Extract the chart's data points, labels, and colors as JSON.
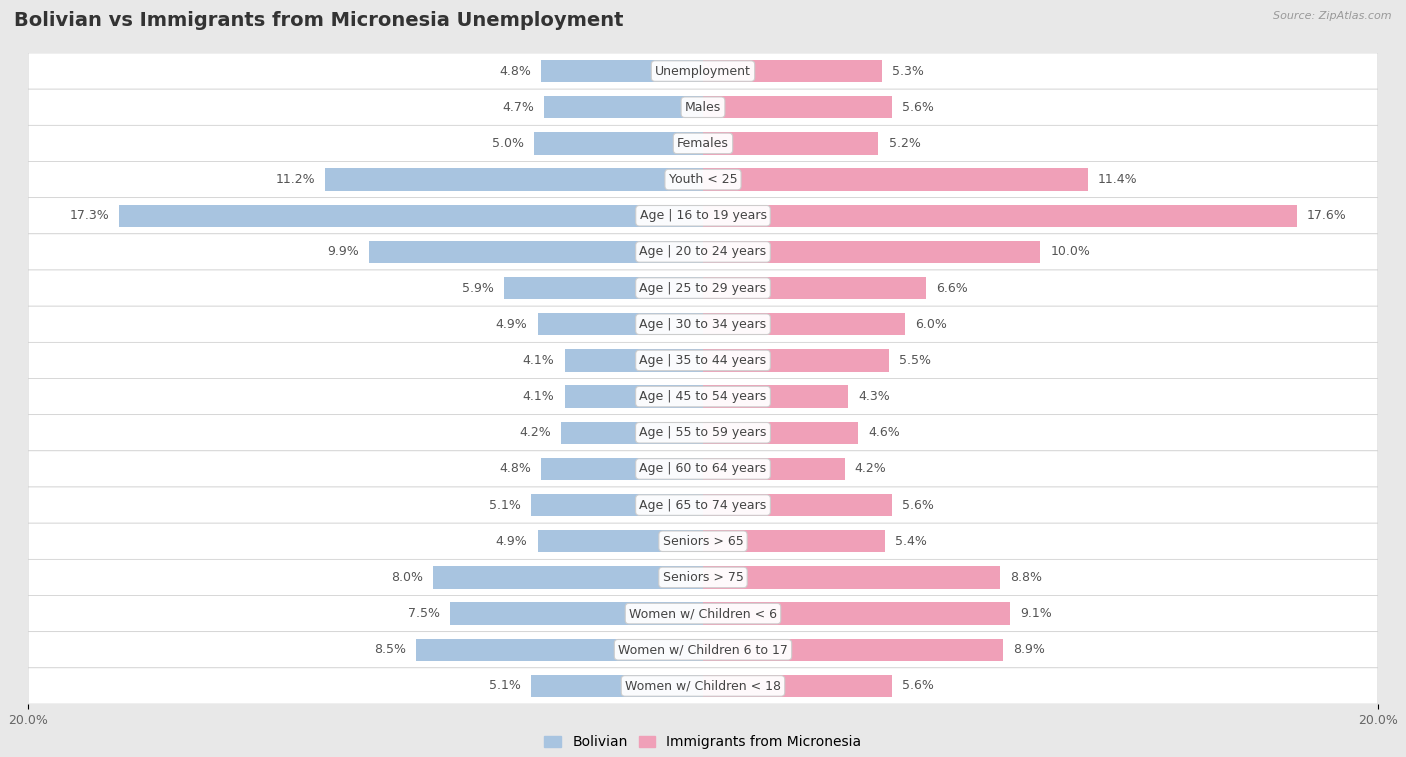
{
  "title": "Bolivian vs Immigrants from Micronesia Unemployment",
  "source": "Source: ZipAtlas.com",
  "categories": [
    "Unemployment",
    "Males",
    "Females",
    "Youth < 25",
    "Age | 16 to 19 years",
    "Age | 20 to 24 years",
    "Age | 25 to 29 years",
    "Age | 30 to 34 years",
    "Age | 35 to 44 years",
    "Age | 45 to 54 years",
    "Age | 55 to 59 years",
    "Age | 60 to 64 years",
    "Age | 65 to 74 years",
    "Seniors > 65",
    "Seniors > 75",
    "Women w/ Children < 6",
    "Women w/ Children 6 to 17",
    "Women w/ Children < 18"
  ],
  "bolivian": [
    4.8,
    4.7,
    5.0,
    11.2,
    17.3,
    9.9,
    5.9,
    4.9,
    4.1,
    4.1,
    4.2,
    4.8,
    5.1,
    4.9,
    8.0,
    7.5,
    8.5,
    5.1
  ],
  "micronesia": [
    5.3,
    5.6,
    5.2,
    11.4,
    17.6,
    10.0,
    6.6,
    6.0,
    5.5,
    4.3,
    4.6,
    4.2,
    5.6,
    5.4,
    8.8,
    9.1,
    8.9,
    5.6
  ],
  "bolivian_color": "#a8c4e0",
  "micronesia_color": "#f0a0b8",
  "background_color": "#e8e8e8",
  "row_color_odd": "#ffffff",
  "row_color_even": "#f0f0f0",
  "axis_max": 20.0,
  "bar_height": 0.62,
  "legend_labels": [
    "Bolivian",
    "Immigrants from Micronesia"
  ],
  "title_fontsize": 14,
  "label_fontsize": 9,
  "value_fontsize": 9
}
